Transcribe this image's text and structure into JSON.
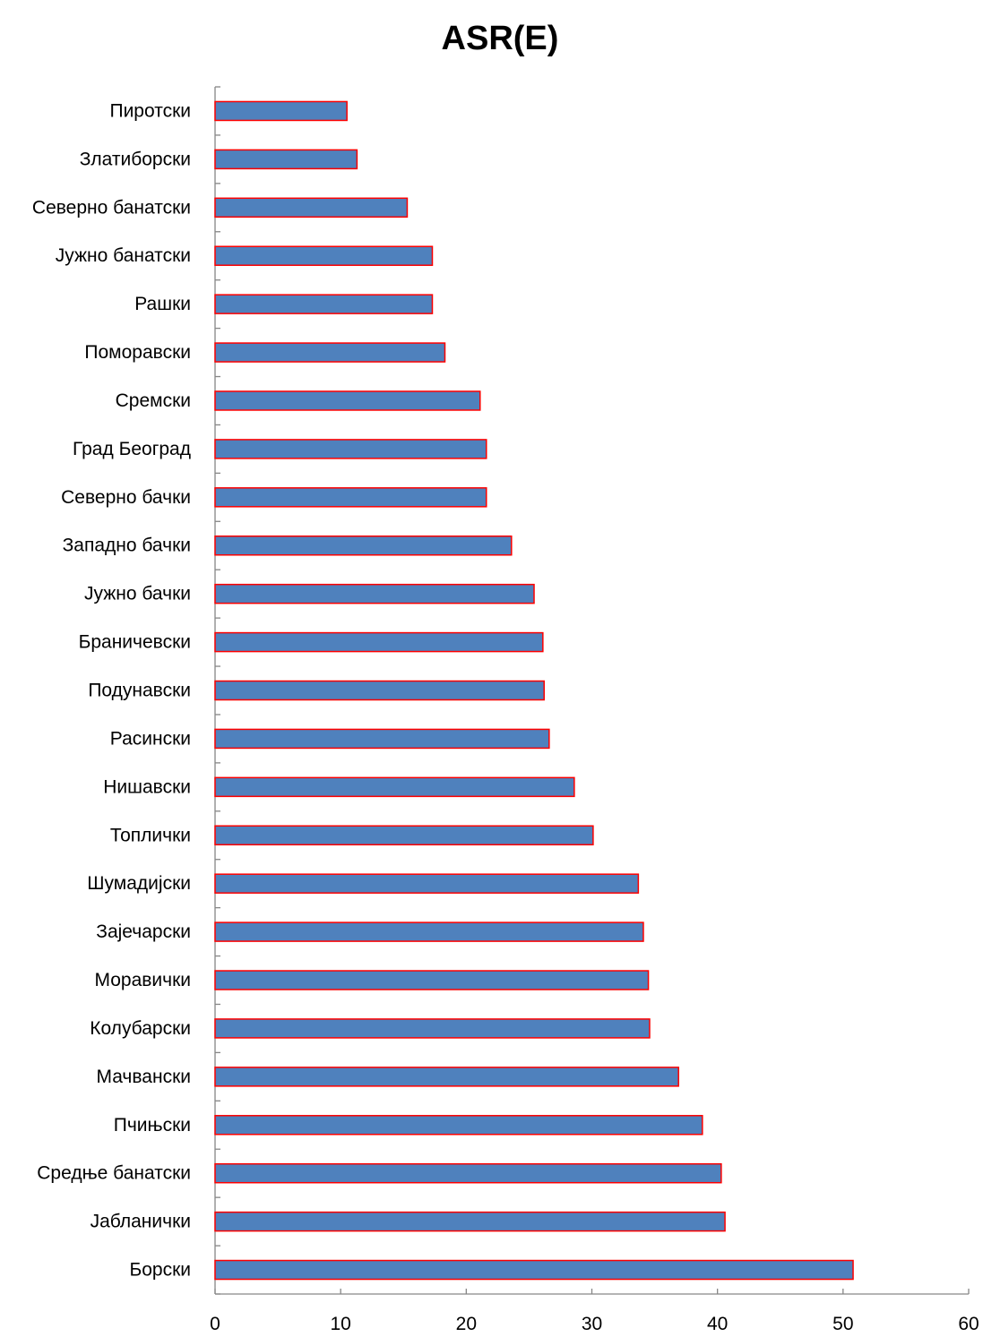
{
  "chart_data": {
    "type": "bar",
    "orientation": "horizontal",
    "title": "ASR(E)",
    "xlabel": "",
    "ylabel": "",
    "categories": [
      "Пиротски",
      "Златиборски",
      "Северно банатски",
      "Јужно банатски",
      "Рашки",
      "Поморавски",
      "Сремски",
      "Град Београд",
      "Северно бачки",
      "Западно бачки",
      "Јужно бачки",
      "Браничевски",
      "Подунавски",
      "Расински",
      "Нишавски",
      "Топлички",
      "Шумадијски",
      "Зајечарски",
      "Моравички",
      "Колубарски",
      "Мачвански",
      "Пчињски",
      "Средње банатски",
      "Јабланички",
      "Борски"
    ],
    "values": [
      10.5,
      11.3,
      15.3,
      17.3,
      17.3,
      18.3,
      21.1,
      21.6,
      21.6,
      23.6,
      25.4,
      26.1,
      26.2,
      26.6,
      28.6,
      30.1,
      33.7,
      34.1,
      34.5,
      34.6,
      36.9,
      38.8,
      40.3,
      40.6,
      50.8
    ],
    "xlim": [
      0,
      60
    ],
    "xticks": [
      0,
      10,
      20,
      30,
      40,
      50,
      60
    ],
    "grid": false,
    "legend": "none",
    "colors": {
      "bar_fill": "#4F81BD",
      "bar_stroke": "#FF0000",
      "axis": "#868686"
    }
  }
}
